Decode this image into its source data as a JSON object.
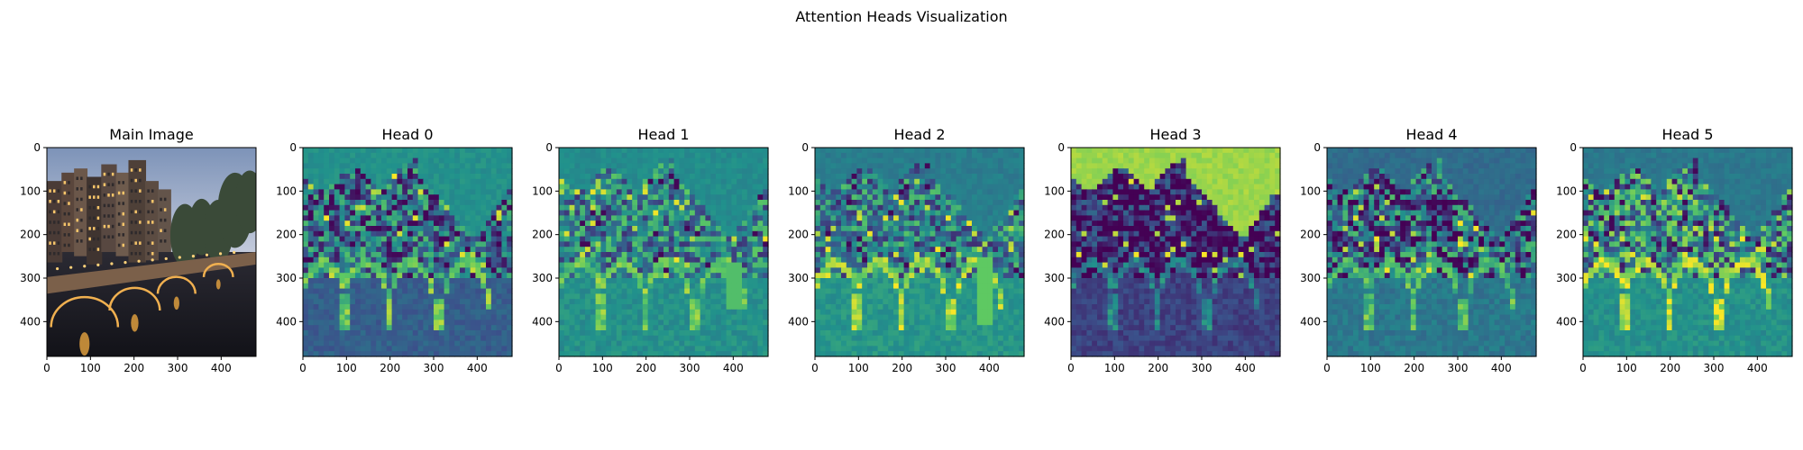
{
  "chart_data": {
    "type": "heatmap",
    "title": "Attention Heads Visualization",
    "grid": false,
    "panels": [
      {
        "title": "Main Image",
        "kind": "photo",
        "xlim": [
          0,
          480
        ],
        "ylim": [
          480,
          0
        ],
        "xticks": [
          0,
          100,
          200,
          300,
          400
        ],
        "yticks": [
          0,
          100,
          200,
          300,
          400
        ]
      },
      {
        "title": "Head 0",
        "kind": "attention",
        "xlim": [
          0,
          480
        ],
        "ylim": [
          480,
          0
        ],
        "xticks": [
          0,
          100,
          200,
          300,
          400
        ],
        "yticks": [
          0,
          100,
          200,
          300,
          400
        ]
      },
      {
        "title": "Head 1",
        "kind": "attention",
        "xlim": [
          0,
          480
        ],
        "ylim": [
          480,
          0
        ],
        "xticks": [
          0,
          100,
          200,
          300,
          400
        ],
        "yticks": [
          0,
          100,
          200,
          300,
          400
        ]
      },
      {
        "title": "Head 2",
        "kind": "attention",
        "xlim": [
          0,
          480
        ],
        "ylim": [
          480,
          0
        ],
        "xticks": [
          0,
          100,
          200,
          300,
          400
        ],
        "yticks": [
          0,
          100,
          200,
          300,
          400
        ]
      },
      {
        "title": "Head 3",
        "kind": "attention",
        "xlim": [
          0,
          480
        ],
        "ylim": [
          480,
          0
        ],
        "xticks": [
          0,
          100,
          200,
          300,
          400
        ],
        "yticks": [
          0,
          100,
          200,
          300,
          400
        ]
      },
      {
        "title": "Head 4",
        "kind": "attention",
        "xlim": [
          0,
          480
        ],
        "ylim": [
          480,
          0
        ],
        "xticks": [
          0,
          100,
          200,
          300,
          400
        ],
        "yticks": [
          0,
          100,
          200,
          300,
          400
        ]
      },
      {
        "title": "Head 5",
        "kind": "attention",
        "xlim": [
          0,
          480
        ],
        "ylim": [
          480,
          0
        ],
        "xticks": [
          0,
          100,
          200,
          300,
          400
        ],
        "yticks": [
          0,
          100,
          200,
          300,
          400
        ]
      }
    ],
    "colormap": "viridis",
    "colormap_stops": [
      "#440154",
      "#3b528b",
      "#21918c",
      "#5ec962",
      "#fde725"
    ]
  }
}
